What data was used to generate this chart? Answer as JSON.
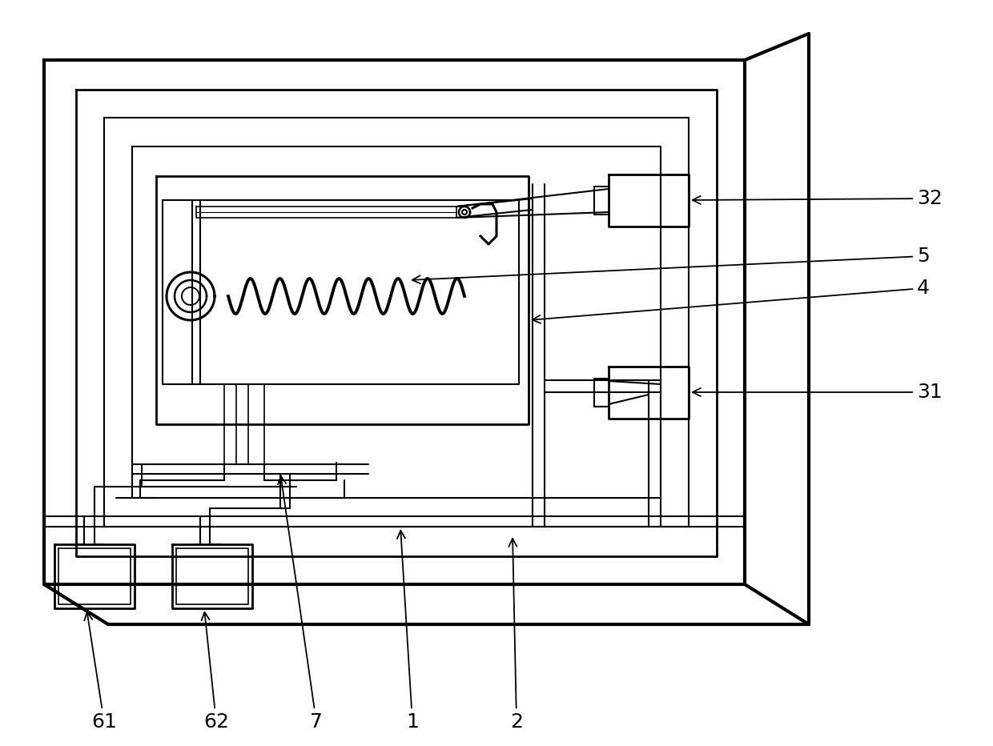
{
  "bg_color": "#ffffff",
  "lc": "#000000",
  "lw_thick": 3.0,
  "lw_med": 2.0,
  "lw_thin": 1.5,
  "lw_fine": 1.2,
  "label_fontsize": 18,
  "perspective_shear": 0.12
}
